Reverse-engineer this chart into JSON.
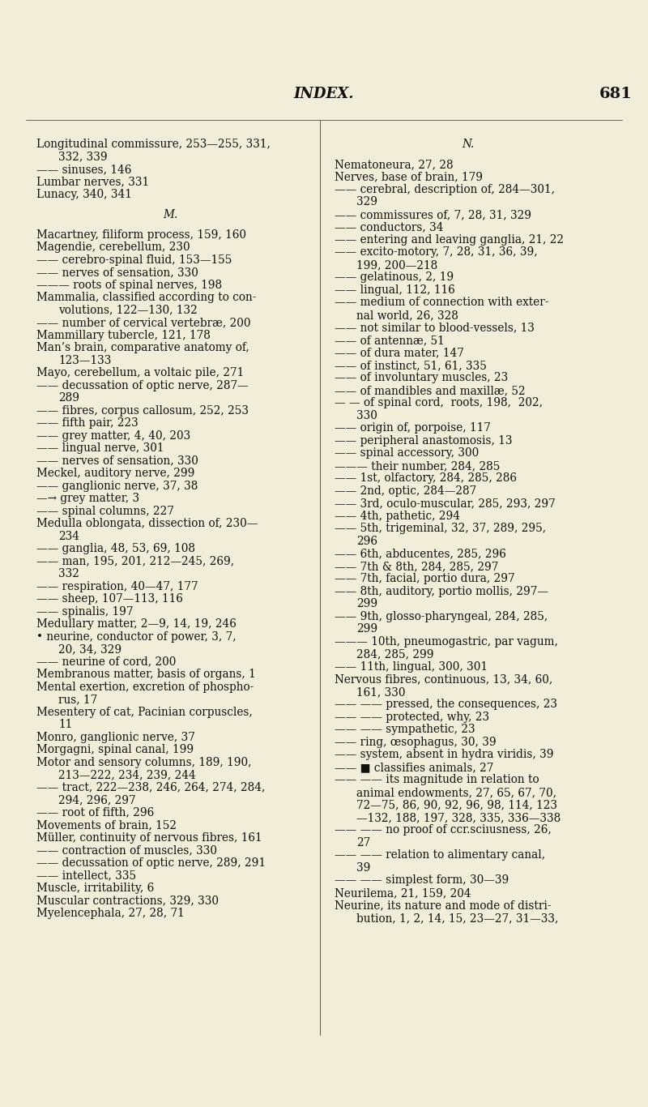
{
  "background_color": "#f0edd8",
  "page_title": "INDEX.",
  "page_number": "681",
  "title_fontsize": 13,
  "body_fontsize": 9.8,
  "left_column": [
    "Longitudinal commissure, 253—255, 331,",
    "   332, 339",
    "—— sinuses, 146",
    "Lumbar nerves, 331",
    "Lunacy, 340, 341",
    "",
    "M.",
    "",
    "Macartney, filiform process, 159, 160",
    "Magendie, cerebellum, 230",
    "—— cerebro-spinal fluid, 153—155",
    "—— nerves of sensation, 330",
    "——— roots of spinal nerves, 198",
    "Mammalia, classified according to con-",
    "   volutions, 122—130, 132",
    "—— number of cervical vertebræ, 200",
    "Mammillary tubercle, 121, 178",
    "Man’s brain, comparative anatomy of,",
    "   123—133",
    "Mayo, cerebellum, a voltaic pile, 271",
    "—— decussation of optic nerve, 287—",
    "   289",
    "—— fibres, corpus callosum, 252, 253",
    "—— fifth pair, 223",
    "—— grey matter, 4, 40, 203",
    "—— lingual nerve, 301",
    "—— nerves of sensation, 330",
    "Meckel, auditory nerve, 299",
    "—— ganglionic nerve, 37, 38",
    "—→ grey matter, 3",
    "—— spinal columns, 227",
    "Medulla oblongata, dissection of, 230—",
    "   234",
    "—— ganglia, 48, 53, 69, 108",
    "—— man, 195, 201, 212—245, 269,",
    "   332",
    "—— respiration, 40—47, 177",
    "—— sheep, 107—113, 116",
    "—— spinalis, 197",
    "Medullary matter, 2—9, 14, 19, 246",
    "• neurine, conductor of power, 3, 7,",
    "   20, 34, 329",
    "—— neurine of cord, 200",
    "Membranous matter, basis of organs, 1",
    "Mental exertion, excretion of phospho-",
    "   rus, 17",
    "Mesentery of cat, Pacinian corpuscles,",
    "   11",
    "Monro, ganglionic nerve, 37",
    "Morgagni, spinal canal, 199",
    "Motor and sensory columns, 189, 190,",
    "   213—222, 234, 239, 244",
    "—— tract, 222—238, 246, 264, 274, 284,",
    "   294, 296, 297",
    "—— root of fifth, 296",
    "Movements of brain, 152",
    "Müller, continuity of nervous fibres, 161",
    "—— contraction of muscles, 330",
    "—— decussation of optic nerve, 289, 291",
    "—— intellect, 335",
    "Muscle, irritability, 6",
    "Muscular contractions, 329, 330",
    "Myelencephala, 27, 28, 71"
  ],
  "right_column": [
    "N.",
    "",
    "Nematoneura, 27, 28",
    "Nerves, base of brain, 179",
    "—— cerebral, description of, 284—301,",
    "   329",
    "—— commissures of, 7, 28, 31, 329",
    "—— conductors, 34",
    "—— entering and leaving ganglia, 21, 22",
    "—— excito-motory, 7, 28, 31, 36, 39,",
    "   199, 200—218",
    "—— gelatinous, 2, 19",
    "—— lingual, 112, 116",
    "—— medium of connection with exter-",
    "   nal world, 26, 328",
    "—— not similar to blood-vessels, 13",
    "—— of antennæ, 51",
    "—— of dura mater, 147",
    "—— of instinct, 51, 61, 335",
    "—— of involuntary muscles, 23",
    "—— of mandibles and maxillæ, 52",
    "— — of spinal cord,  roots, 198,  202,",
    "   330",
    "—— origin of, porpoise, 117",
    "—— peripheral anastomosis, 13",
    "—— spinal accessory, 300",
    "——— their number, 284, 285",
    "—— 1st, olfactory, 284, 285, 286",
    "—— 2nd, optic, 284—287",
    "—— 3rd, oculo-muscular, 285, 293, 297",
    "—— 4th, pathetic, 294",
    "—— 5th, trigeminal, 32, 37, 289, 295,",
    "   296",
    "—— 6th, abducentes, 285, 296",
    "—— 7th & 8th, 284, 285, 297",
    "—— 7th, facial, portio dura, 297",
    "—— 8th, auditory, portio mollis, 297—",
    "   299",
    "—— 9th, glosso-pharyngeal, 284, 285,",
    "   299",
    "——— 10th, pneumogastric, par vagum,",
    "   284, 285, 299",
    "—— 11th, lingual, 300, 301",
    "Nervous fibres, continuous, 13, 34, 60,",
    "   161, 330",
    "—— —— pressed, the consequences, 23",
    "—— —— protected, why, 23",
    "—— —— sympathetic, 23",
    "—— ring, œsophagus, 30, 39",
    "—— system, absent in hydra viridis, 39",
    "—— ■ classifies animals, 27",
    "—— —— its magnitude in relation to",
    "   animal endowments, 27, 65, 67, 70,",
    "   72—75, 86, 90, 92, 96, 98, 114, 123",
    "   —132, 188, 197, 328, 335, 336—338",
    "—— —— no proof of ccr.sciıusness, 26,",
    "   27",
    "—— —— relation to alimentary canal,",
    "   39",
    "—— —— simplest form, 30—39",
    "Neurilema, 21, 159, 204",
    "Neurine, its nature and mode of distri-",
    "   bution, 1, 2, 14, 15, 23—27, 31—33,"
  ]
}
